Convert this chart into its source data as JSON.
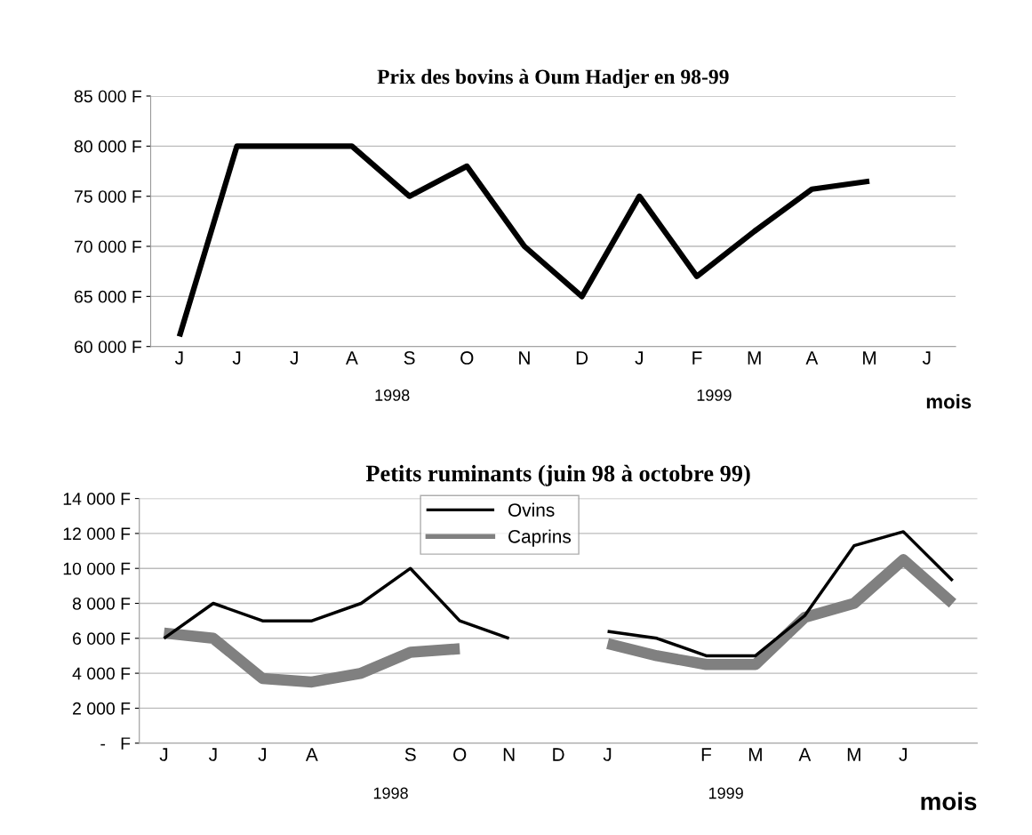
{
  "chart_data": [
    {
      "type": "line",
      "title": "Prix des bovins à Oum Hadjer en 98-99",
      "xlabel": "mois",
      "categories": [
        "J",
        "J",
        "J",
        "A",
        "S",
        "O",
        "N",
        "D",
        "J",
        "F",
        "M",
        "A",
        "M",
        "J"
      ],
      "series": [
        {
          "color": "#000000",
          "values": [
            61000,
            80000,
            80000,
            80000,
            75000,
            78000,
            70000,
            65000,
            75000,
            67000,
            71500,
            75700,
            76500,
            null
          ]
        }
      ],
      "ylim": [
        60000,
        85000
      ],
      "yticks": [
        {
          "value": 60000,
          "label": "60 000 F"
        },
        {
          "value": 65000,
          "label": "65 000 F"
        },
        {
          "value": 70000,
          "label": "70 000 F"
        },
        {
          "value": 75000,
          "label": "75 000 F"
        },
        {
          "value": 80000,
          "label": "80 000 F"
        },
        {
          "value": 85000,
          "label": "85 000 F"
        }
      ],
      "annotations": [
        "1998",
        "1999"
      ],
      "grid": "y",
      "legend": false
    },
    {
      "type": "line",
      "title": "Petits ruminants (juin 98 à octobre 99)",
      "xlabel": "mois",
      "categories": [
        "J",
        "J",
        "J",
        "A",
        null,
        "S",
        "O",
        "N",
        "D",
        "J",
        null,
        "F",
        "M",
        "A",
        "M",
        "J",
        null
      ],
      "series": [
        {
          "name": "Ovins",
          "color": "#000000",
          "values": [
            6000,
            8000,
            7000,
            7000,
            8000,
            10000,
            7000,
            6000,
            null,
            6400,
            6000,
            5000,
            5000,
            7300,
            11300,
            12100,
            9300
          ]
        },
        {
          "name": "Caprins",
          "color": "#808080",
          "values": [
            6300,
            6000,
            3700,
            3500,
            4000,
            5200,
            5400,
            null,
            null,
            5700,
            5000,
            4500,
            4500,
            7200,
            8000,
            10500,
            8000
          ]
        }
      ],
      "ylim": [
        0,
        14000
      ],
      "yticks": [
        {
          "value": 0,
          "label": "-   F"
        },
        {
          "value": 2000,
          "label": "2 000 F"
        },
        {
          "value": 4000,
          "label": "4 000 F"
        },
        {
          "value": 6000,
          "label": "6 000 F"
        },
        {
          "value": 8000,
          "label": "8 000 F"
        },
        {
          "value": 10000,
          "label": "10 000 F"
        },
        {
          "value": 12000,
          "label": "12 000 F"
        },
        {
          "value": 14000,
          "label": "14 000 F"
        }
      ],
      "annotations": [
        "1998",
        "1999"
      ],
      "grid": "y",
      "legend": "top"
    }
  ]
}
